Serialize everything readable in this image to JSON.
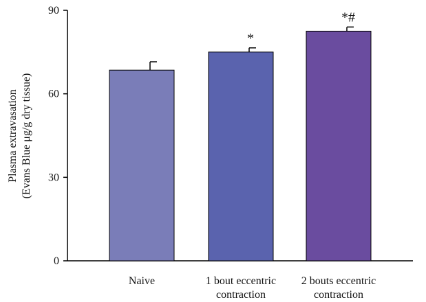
{
  "chart_data": {
    "type": "bar",
    "title": "",
    "xlabel": "",
    "ylabel_line1": "Plasma extravasation",
    "ylabel_line2": "(Evans Blue μg/g dry tissue)",
    "ylim": [
      0,
      90
    ],
    "yticks": [
      0,
      30,
      60,
      90
    ],
    "grid": false,
    "categories": [
      [
        "Naive"
      ],
      [
        "1 bout eccentric",
        "contraction"
      ],
      [
        "2 bouts eccentric",
        "contraction"
      ]
    ],
    "values": [
      68.5,
      75,
      82.5
    ],
    "errors": [
      3,
      1.5,
      1.5
    ],
    "annotations": [
      "",
      "*",
      "*#"
    ],
    "colors": [
      "#7a7db8",
      "#5a63ae",
      "#6a4c9f"
    ],
    "edge_color": "#000000"
  }
}
